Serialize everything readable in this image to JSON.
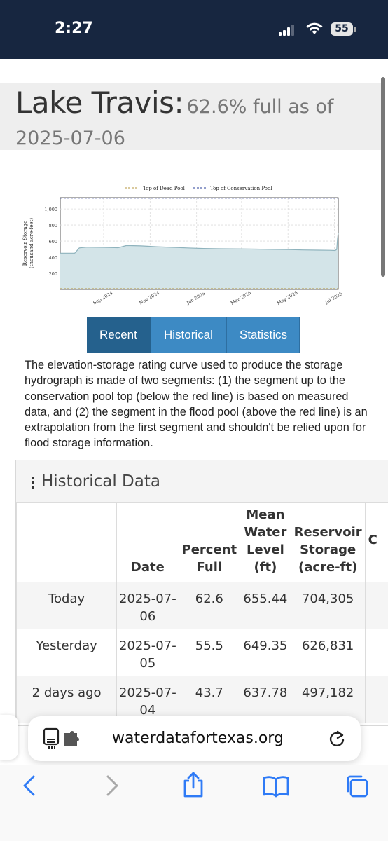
{
  "status_bar": {
    "time": "2:27",
    "battery": "55"
  },
  "page": {
    "title": "Lake Travis:",
    "percent_full": "62.6% full as of",
    "as_of_date": "2025-07-06"
  },
  "chart_data": {
    "type": "area",
    "title": "",
    "ylabel_line1": "Reservoir Storage",
    "ylabel_line2": "(thousand acre-feet)",
    "yticks": [
      "200",
      "400",
      "600",
      "800",
      "1,000"
    ],
    "ylim": [
      0,
      1140
    ],
    "xticks": [
      "Sep 2024",
      "Nov 2024",
      "Jan 2025",
      "Mar 2025",
      "May 2025",
      "Jul 2025"
    ],
    "xlim": [
      "2024-07-06",
      "2025-07-06"
    ],
    "legend": [
      {
        "name": "Top of Dead Pool",
        "color": "#b4963c",
        "style": "dashed"
      },
      {
        "name": "Top of Conservation Pool",
        "color": "#2a3f9a",
        "style": "dashed"
      }
    ],
    "reference_lines": {
      "dead_pool": 0,
      "conservation_pool": 1134
    },
    "fill_color": "#d3e4e8",
    "line_color": "#8fb3bd",
    "series": [
      {
        "x": [
          "2024-07-06",
          "2024-07-25",
          "2024-07-31",
          "2024-08-10",
          "2024-09-01",
          "2024-09-20",
          "2024-10-01",
          "2024-10-20",
          "2024-11-10",
          "2024-12-01",
          "2024-12-20",
          "2025-01-10",
          "2025-02-01",
          "2025-03-01",
          "2025-03-20",
          "2025-04-10",
          "2025-05-01",
          "2025-05-20",
          "2025-06-10",
          "2025-06-25",
          "2025-07-02",
          "2025-07-04",
          "2025-07-05",
          "2025-07-06"
        ],
        "y": [
          450,
          450,
          515,
          525,
          522,
          518,
          545,
          540,
          530,
          522,
          515,
          508,
          505,
          503,
          500,
          497,
          495,
          490,
          487,
          486,
          483,
          497,
          627,
          704
        ]
      }
    ]
  },
  "tabs": [
    "Recent",
    "Historical",
    "Statistics"
  ],
  "description": "The elevation-storage rating curve used to produce the storage hydrograph is made of two segments: (1) the segment up to the conservation pool top (below the red line) is based on measured data, and (2) the segment in the flood pool (above the red line) is an extrapolation from the first segment and shouldn't be relied upon for flood storage information.",
  "historical": {
    "title": "Historical Data",
    "columns": [
      "",
      "Date",
      "Percent Full",
      "Mean Water Level (ft)",
      "Reservoir Storage (acre-ft)",
      "C"
    ],
    "header_lines": [
      [],
      [
        "Date"
      ],
      [
        "Percent",
        "Full"
      ],
      [
        "Mean",
        "Water",
        "Level",
        "(ft)"
      ],
      [
        "Reservoir",
        "Storage",
        "(acre-ft)"
      ],
      [
        "C"
      ]
    ],
    "rows": [
      {
        "label": "Today",
        "date_1": "2025-07-",
        "date_2": "06",
        "pct": "62.6",
        "level": "655.44",
        "storage": "704,305"
      },
      {
        "label": "Yesterday",
        "date_1": "2025-07-",
        "date_2": "05",
        "pct": "55.5",
        "level": "649.35",
        "storage": "626,831"
      },
      {
        "label": "2 days ago",
        "date_1": "2025-07-",
        "date_2": "04",
        "pct": "43.7",
        "level": "637.78",
        "storage": "497,182"
      }
    ]
  },
  "browser": {
    "url": "waterdatafortexas.org"
  },
  "icons": {
    "reader": "reader-mode-icon",
    "reload": "reload-icon",
    "back": "back-chevron-icon",
    "forward": "forward-chevron-icon",
    "share": "share-icon",
    "bookmarks": "bookmarks-book-icon",
    "tabs": "tabs-icon"
  }
}
